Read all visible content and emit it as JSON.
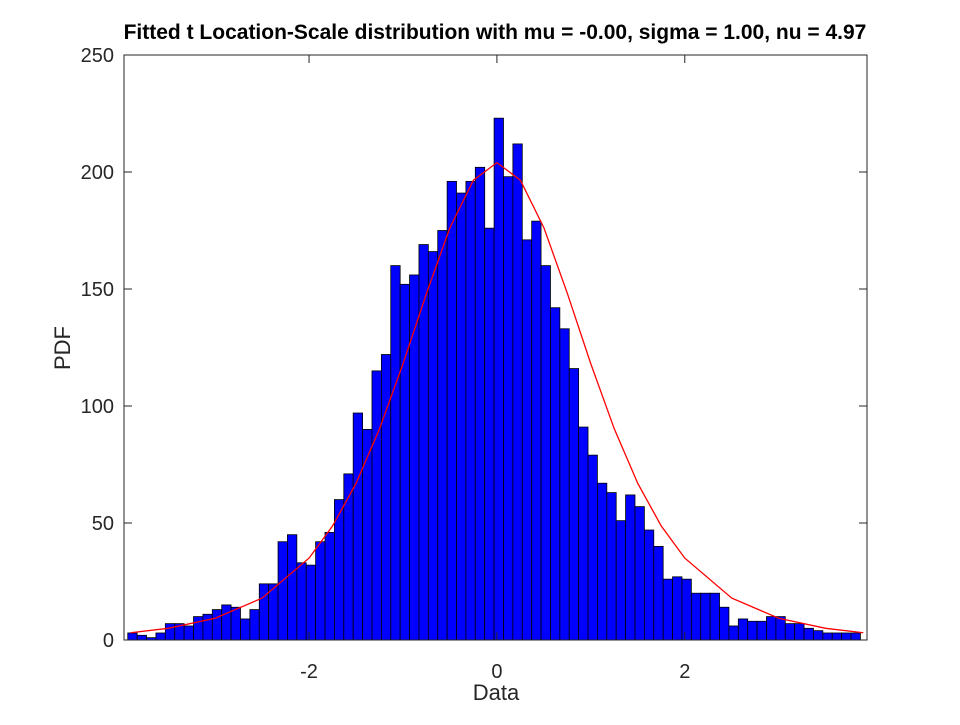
{
  "chart_data": {
    "type": "histogram",
    "title": "Fitted t Location-Scale distribution with mu = -0.00, sigma = 1.00, nu = 4.97",
    "xlabel": "Data",
    "ylabel": "PDF",
    "bins": [
      -3.93,
      -3.83,
      -3.73,
      -3.63,
      -3.53,
      -3.43,
      -3.33,
      -3.23,
      -3.13,
      -3.03,
      -2.93,
      -2.83,
      -2.73,
      -2.63,
      -2.53,
      -2.43,
      -2.33,
      -2.23,
      -2.13,
      -2.03,
      -1.93,
      -1.83,
      -1.73,
      -1.63,
      -1.53,
      -1.43,
      -1.33,
      -1.23,
      -1.13,
      -1.03,
      -0.93,
      -0.83,
      -0.73,
      -0.63,
      -0.53,
      -0.43,
      -0.33,
      -0.23,
      -0.13,
      -0.03,
      0.07,
      0.17,
      0.27,
      0.37,
      0.47,
      0.57,
      0.67,
      0.77,
      0.87,
      0.97,
      1.07,
      1.17,
      1.27,
      1.37,
      1.47,
      1.57,
      1.67,
      1.77,
      1.87,
      1.97,
      2.07,
      2.17,
      2.27,
      2.37,
      2.47,
      2.57,
      2.67,
      2.77,
      2.87,
      2.97,
      3.07,
      3.17,
      3.27,
      3.37,
      3.47,
      3.57,
      3.67,
      3.77,
      3.87
    ],
    "values": [
      3,
      2,
      1,
      3,
      7,
      7,
      6,
      10,
      11,
      13,
      15,
      14,
      9,
      13,
      24,
      24,
      42,
      45,
      33,
      32,
      42,
      46,
      60,
      71,
      97,
      90,
      115,
      122,
      160,
      152,
      156,
      169,
      166,
      175,
      196,
      191,
      196,
      202,
      176,
      223,
      198,
      212,
      171,
      179,
      160,
      142,
      133,
      116,
      91,
      79,
      67,
      63,
      51,
      62,
      57,
      47,
      40,
      26,
      27,
      26,
      20,
      20,
      20,
      14,
      6,
      9,
      8,
      8,
      10,
      10,
      7,
      7,
      5,
      4,
      3,
      3,
      3,
      3
    ],
    "color": "#0000ff",
    "curve": {
      "color": "#ff0000",
      "x": [
        -3.9,
        -3.5,
        -3,
        -2.5,
        -2,
        -1.75,
        -1.5,
        -1.25,
        -1,
        -0.75,
        -0.5,
        -0.25,
        0,
        0.25,
        0.5,
        0.75,
        1,
        1.25,
        1.5,
        1.75,
        2,
        2.5,
        3,
        3.5,
        3.9
      ],
      "y": [
        3.1,
        5.0,
        9.3,
        17.9,
        35.0,
        48.7,
        66.9,
        90.2,
        118.0,
        148.1,
        176.2,
        196.5,
        204,
        196.5,
        176.2,
        148.1,
        118.0,
        90.2,
        66.9,
        48.7,
        35.0,
        17.9,
        9.3,
        5.0,
        3.1
      ]
    },
    "xlim": [
      -3.97,
      3.94
    ],
    "xticks": [
      -2,
      0,
      2
    ],
    "ylim": [
      0,
      250
    ],
    "yticks": [
      0,
      50,
      100,
      150,
      200,
      250
    ]
  }
}
